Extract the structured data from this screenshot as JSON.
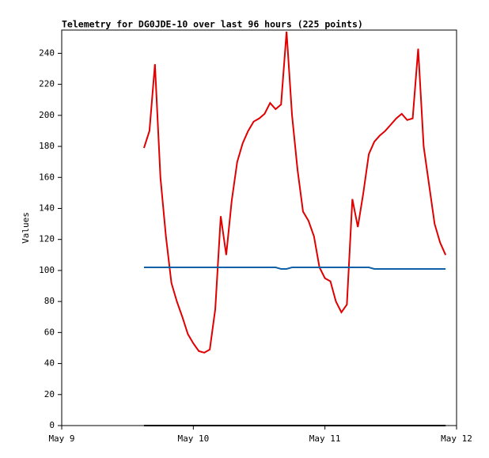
{
  "chart_data": {
    "type": "line",
    "title": "Telemetry for DG0JDE-10 over last 96 hours (225 points)",
    "y_label": "Values",
    "x": [
      15,
      16,
      17,
      18,
      19,
      20,
      21,
      22,
      23,
      24,
      25,
      26,
      27,
      28,
      29,
      30,
      31,
      32,
      33,
      34,
      35,
      36,
      37,
      38,
      39,
      40,
      41,
      42,
      43,
      44,
      45,
      46,
      47,
      48,
      49,
      50,
      51,
      52,
      53,
      54,
      55,
      56,
      57,
      58,
      59,
      60,
      61,
      62,
      63,
      64,
      65,
      66,
      67,
      68,
      69,
      70
    ],
    "series": [
      {
        "color": "#e00000",
        "values": [
          179,
          190,
          233,
          160,
          122,
          92,
          80,
          70,
          59,
          53,
          48,
          47,
          49,
          75,
          135,
          110,
          145,
          170,
          182,
          190,
          196,
          198,
          201,
          208,
          204,
          207,
          254,
          200,
          165,
          138,
          132,
          122,
          102,
          95,
          93,
          80,
          73,
          78,
          146,
          128,
          150,
          175,
          183,
          187,
          190,
          194,
          198,
          201,
          197,
          198,
          243,
          180,
          155,
          130,
          118,
          110
        ]
      },
      {
        "color": "#1060a8",
        "values": [
          102,
          102,
          102,
          102,
          102,
          102,
          102,
          102,
          102,
          102,
          102,
          102,
          102,
          102,
          102,
          102,
          102,
          102,
          102,
          102,
          102,
          102,
          102,
          102,
          102,
          101,
          101,
          102,
          102,
          102,
          102,
          102,
          102,
          102,
          102,
          102,
          102,
          102,
          102,
          102,
          102,
          102,
          101,
          101,
          101,
          101,
          101,
          101,
          101,
          101,
          101,
          101,
          101,
          101,
          101,
          101
        ]
      },
      {
        "color": "#000000",
        "values": [
          0,
          0,
          0,
          0,
          0,
          0,
          0,
          0,
          0,
          0,
          0,
          0,
          0,
          0,
          0,
          0,
          0,
          0,
          0,
          0,
          0,
          0,
          0,
          0,
          0,
          0,
          0,
          0,
          0,
          0,
          0,
          0,
          0,
          0,
          0,
          0,
          0,
          0,
          0,
          0,
          0,
          0,
          0,
          0,
          0,
          0,
          0,
          0,
          0,
          0,
          0,
          0,
          0,
          0,
          0,
          0
        ]
      }
    ],
    "xlim": [
      0,
      72
    ],
    "xticks": [
      {
        "value": 0,
        "label": "May 9"
      },
      {
        "value": 24,
        "label": "May 10"
      },
      {
        "value": 48,
        "label": "May 11"
      },
      {
        "value": 72,
        "label": "May 12"
      }
    ],
    "ylim": [
      0,
      255
    ],
    "yticks": [
      0,
      20,
      40,
      60,
      80,
      100,
      120,
      140,
      160,
      180,
      200,
      220,
      240
    ]
  }
}
